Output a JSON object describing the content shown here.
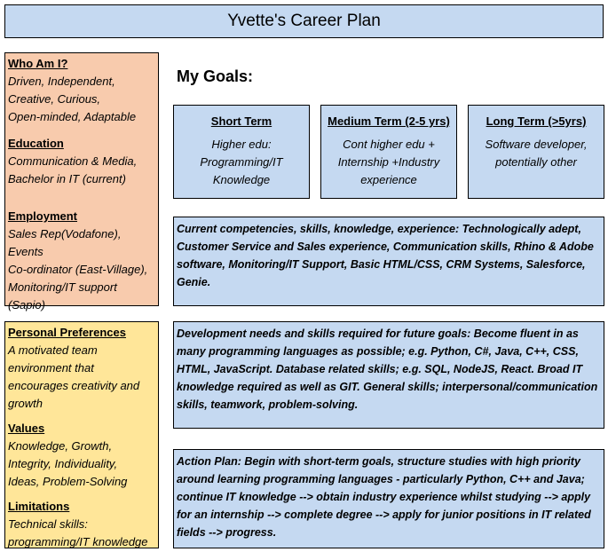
{
  "title": "Yvette's Career Plan",
  "left_top": {
    "who_heading": "Who Am I?",
    "who_body": "Driven, Independent,\nCreative, Curious,\nOpen-minded, Adaptable",
    "education_heading": "Education",
    "education_body": "Communication & Media,\nBachelor in IT (current)",
    "employment_heading": "Employment",
    "employment_body": "Sales Rep(Vodafone), Events\nCo-ordinator (East-Village),\nMonitoring/IT support\n(Sapio)"
  },
  "left_bottom": {
    "preferences_heading": "Personal Preferences",
    "preferences_body": "A motivated team\nenvironment that\nencourages creativity and\ngrowth",
    "values_heading": "Values",
    "values_body": "Knowledge, Growth,\nIntegrity, Individuality,\nIdeas, Problem-Solving",
    "limitations_heading": "Limitations",
    "limitations_body": "Technical skills:\nprogramming/IT knowledge"
  },
  "goals": {
    "heading": "My Goals:",
    "short": {
      "heading": "Short Term",
      "body": "Higher edu:\nProgramming/IT\nKnowledge"
    },
    "medium": {
      "heading": "Medium Term (2-5 yrs)",
      "body": "Cont higher edu +\nInternship +Industry\nexperience"
    },
    "long": {
      "heading": "Long Term (>5yrs)",
      "body": "Software developer,\npotentially other"
    }
  },
  "competencies": "Current competencies, skills, knowledge, experience: Technologically adept, Customer Service and Sales experience, Communication skills, Rhino & Adobe software, Monitoring/IT Support, Basic HTML/CSS, CRM Systems, Salesforce, Genie.",
  "development": "Development needs and skills required for future goals: Become fluent in as many programming languages as possible; e.g. Python, C#, Java, C++, CSS, HTML, JavaScript. Database related skills; e.g.  SQL, NodeJS, React. Broad IT knowledge required as well as GIT. General skills; interpersonal/communication skills, teamwork, problem-solving.",
  "action_plan": "Action Plan: Begin with short-term goals, structure studies with high priority around learning programming languages - particularly Python, C++ and Java; continue IT knowledge --> obtain industry experience whilst studying --> apply for an internship --> complete degree --> apply for junior positions in IT related fields --> progress.",
  "colors": {
    "blue_fill": "#c5d9f1",
    "peach_fill": "#f8cbad",
    "yellow_fill": "#ffe699"
  }
}
